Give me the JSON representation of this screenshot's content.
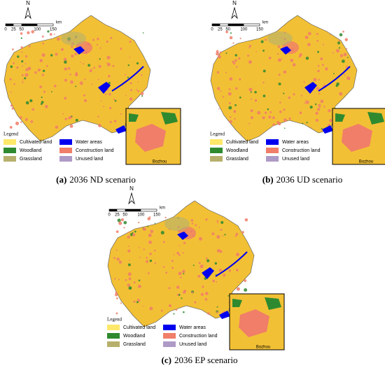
{
  "panels": [
    {
      "label": "(a)",
      "caption": "2036 ND scenario"
    },
    {
      "label": "(b)",
      "caption": "2036 UD scenario"
    },
    {
      "label": "(c)",
      "caption": "2036 EP scenario"
    }
  ],
  "north": "N",
  "scale": {
    "ticks": [
      "0",
      "25",
      "50",
      "100",
      "150"
    ],
    "unit": "km"
  },
  "legend": {
    "title": "Legend",
    "items": [
      {
        "label": "Cultivated land",
        "color": "#fde86a"
      },
      {
        "label": "Water areas",
        "color": "#0000ee"
      },
      {
        "label": "Woodland",
        "color": "#2f8a2f"
      },
      {
        "label": "Construction land",
        "color": "#f07e68"
      },
      {
        "label": "Grassland",
        "color": "#b6b06c"
      },
      {
        "label": "Unused land",
        "color": "#ae9ac6"
      }
    ]
  },
  "inset_label": "Bozhou"
}
